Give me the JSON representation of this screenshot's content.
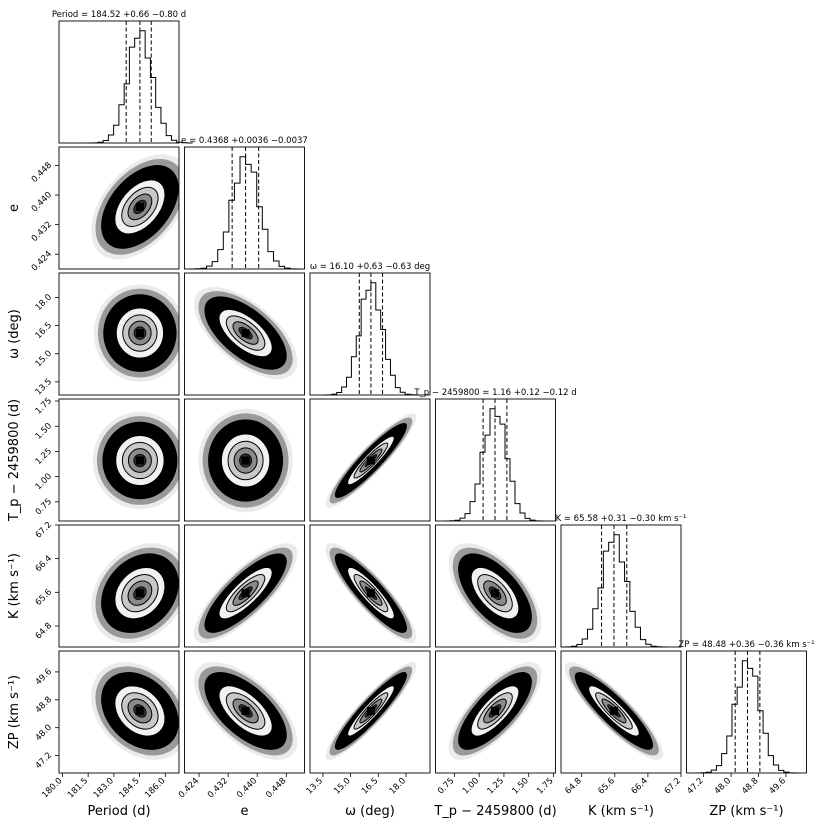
{
  "chart_data": {
    "type": "corner",
    "grid": false,
    "colors": {
      "fill": "#000000",
      "contour": "#ffffff",
      "frame": "#000000",
      "line": "#000000"
    },
    "parameters": [
      {
        "key": "period",
        "label": "Period (d)",
        "title": "Period = 184.52 +0.66 −0.80 d",
        "median": 184.52,
        "err_plus": 0.66,
        "err_minus": 0.8,
        "range": [
          179.8,
          186.8
        ],
        "ticks": [
          180.0,
          181.5,
          183.0,
          184.5,
          186.0
        ],
        "tick_labels": [
          "180.0",
          "181.5",
          "183.0",
          "184.5",
          "186.0"
        ]
      },
      {
        "key": "e",
        "label": "e",
        "title": "e = 0.4368 +0.0036 −0.0037",
        "median": 0.4368,
        "err_plus": 0.0036,
        "err_minus": 0.0037,
        "range": [
          0.42,
          0.453
        ],
        "ticks": [
          0.424,
          0.432,
          0.44,
          0.448
        ],
        "tick_labels": [
          "0.424",
          "0.432",
          "0.440",
          "0.448"
        ]
      },
      {
        "key": "omega",
        "label": "ω (deg)",
        "title": "ω = 16.10 +0.63 −0.63 deg",
        "median": 16.1,
        "err_plus": 0.63,
        "err_minus": 0.63,
        "range": [
          12.8,
          19.3
        ],
        "ticks": [
          13.5,
          15.0,
          16.5,
          18.0
        ],
        "tick_labels": [
          "13.5",
          "15.0",
          "16.5",
          "18.0"
        ]
      },
      {
        "key": "tp",
        "label": "T_p − 2459800 (d)",
        "title": "T_p − 2459800 = 1.16 +0.12 −0.12 d",
        "median": 1.16,
        "err_plus": 0.12,
        "err_minus": 0.12,
        "range": [
          0.56,
          1.77
        ],
        "ticks": [
          0.75,
          1.0,
          1.25,
          1.5,
          1.75
        ],
        "tick_labels": [
          "0.75",
          "1.00",
          "1.25",
          "1.50",
          "1.75"
        ]
      },
      {
        "key": "k",
        "label": "K (km s⁻¹)",
        "title": "K = 65.58 +0.31 −0.30 km s⁻¹",
        "median": 65.58,
        "err_plus": 0.31,
        "err_minus": 0.3,
        "range": [
          64.3,
          67.2
        ],
        "ticks": [
          64.8,
          65.6,
          66.4,
          67.2
        ],
        "tick_labels": [
          "64.8",
          "65.6",
          "66.4",
          "67.2"
        ]
      },
      {
        "key": "zp",
        "label": "ZP (km s⁻¹)",
        "title": "ZP = 48.48 +0.36 −0.36 km s⁻¹",
        "median": 48.48,
        "err_plus": 0.36,
        "err_minus": 0.36,
        "range": [
          46.7,
          50.2
        ],
        "ticks": [
          47.2,
          48.0,
          48.8,
          49.6
        ],
        "tick_labels": [
          "47.2",
          "48.0",
          "48.8",
          "49.6"
        ]
      }
    ],
    "correlations": [
      {
        "row": "e",
        "col": "period",
        "rho": 0.45
      },
      {
        "row": "omega",
        "col": "period",
        "rho": 0.0
      },
      {
        "row": "omega",
        "col": "e",
        "rho": -0.62
      },
      {
        "row": "tp",
        "col": "period",
        "rho": 0.0
      },
      {
        "row": "tp",
        "col": "e",
        "rho": 0.0
      },
      {
        "row": "tp",
        "col": "omega",
        "rho": 0.92
      },
      {
        "row": "k",
        "col": "period",
        "rho": 0.25
      },
      {
        "row": "k",
        "col": "e",
        "rho": 0.8
      },
      {
        "row": "k",
        "col": "omega",
        "rho": -0.88
      },
      {
        "row": "k",
        "col": "tp",
        "rho": -0.6
      },
      {
        "row": "zp",
        "col": "period",
        "rho": -0.3
      },
      {
        "row": "zp",
        "col": "e",
        "rho": -0.62
      },
      {
        "row": "zp",
        "col": "omega",
        "rho": 0.92
      },
      {
        "row": "zp",
        "col": "tp",
        "rho": 0.75
      },
      {
        "row": "zp",
        "col": "k",
        "rho": -0.88
      }
    ]
  }
}
